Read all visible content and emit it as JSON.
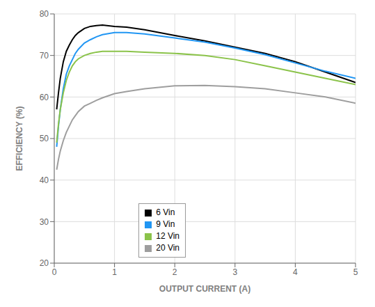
{
  "chart_data": {
    "type": "line",
    "x_label": "OUTPUT CURRENT (A)",
    "y_label": "EFFICIENCY (%)",
    "xlim": [
      0,
      5
    ],
    "ylim": [
      20,
      80
    ],
    "xticks": [
      0,
      1,
      2,
      3,
      4,
      5
    ],
    "yticks": [
      20,
      30,
      40,
      50,
      60,
      70,
      80
    ],
    "grid": true,
    "legend": "lower left",
    "x": [
      0.04,
      0.07,
      0.1,
      0.15,
      0.2,
      0.25,
      0.3,
      0.35,
      0.4,
      0.5,
      0.6,
      0.7,
      0.8,
      1.0,
      1.2,
      1.5,
      2.0,
      2.5,
      3.0,
      3.5,
      4.0,
      4.5,
      5.0
    ],
    "series": [
      {
        "name": "6 Vin",
        "color": "#000000",
        "values": [
          57.0,
          61.0,
          64.5,
          68.5,
          71.0,
          72.5,
          73.8,
          74.8,
          75.5,
          76.5,
          77.0,
          77.2,
          77.3,
          77.0,
          76.8,
          76.2,
          74.8,
          73.5,
          72.0,
          70.5,
          68.5,
          66.0,
          63.5
        ]
      },
      {
        "name": "9 Vin",
        "color": "#2196f3",
        "values": [
          48.0,
          53.0,
          57.0,
          62.0,
          65.5,
          67.5,
          69.0,
          70.5,
          71.5,
          73.0,
          73.8,
          74.5,
          75.0,
          75.5,
          75.5,
          75.2,
          74.2,
          73.2,
          71.8,
          70.2,
          68.2,
          66.2,
          64.5
        ]
      },
      {
        "name": "12 Vin",
        "color": "#8bc34a",
        "values": [
          49.0,
          53.5,
          57.0,
          61.0,
          64.0,
          66.0,
          67.5,
          68.5,
          69.2,
          70.0,
          70.5,
          70.8,
          71.0,
          71.0,
          71.0,
          70.8,
          70.5,
          70.0,
          69.0,
          67.5,
          66.0,
          64.5,
          63.0
        ]
      },
      {
        "name": "20 Vin",
        "color": "#9e9e9e",
        "values": [
          42.5,
          45.0,
          47.0,
          49.5,
          51.5,
          53.0,
          54.5,
          55.5,
          56.5,
          57.8,
          58.5,
          59.2,
          59.8,
          60.8,
          61.3,
          62.0,
          62.7,
          62.8,
          62.5,
          62.0,
          61.0,
          60.0,
          58.5
        ]
      }
    ]
  }
}
